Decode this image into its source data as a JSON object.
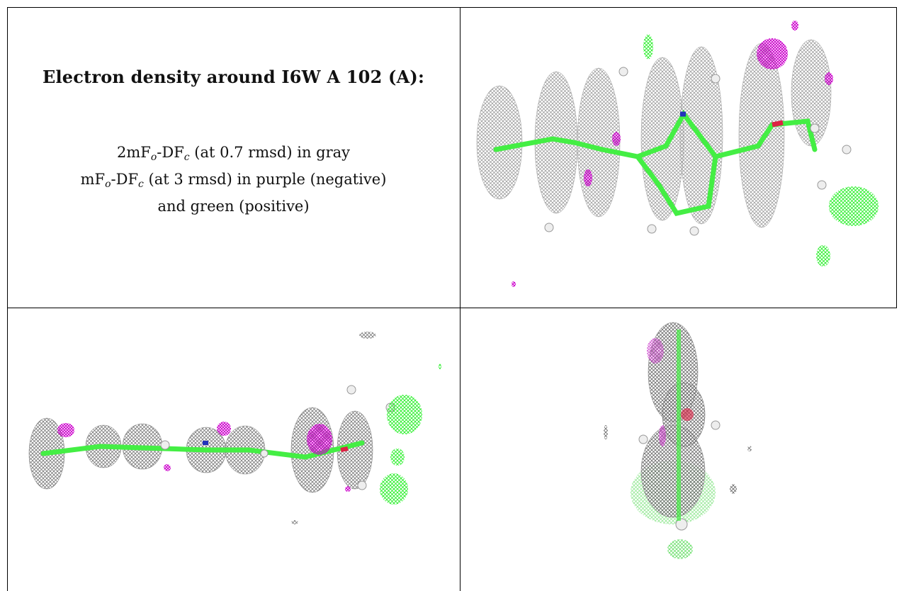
{
  "heading": "Electron density around I6W A 102 (A):",
  "legend": {
    "line1_prefix": "2mF",
    "line1_sub1": "o",
    "line1_mid": "-DF",
    "line1_sub2": "c",
    "line1_suffix": " (at 0.7 rmsd) in gray",
    "line2_prefix": "mF",
    "line2_sub1": "o",
    "line2_mid": "-DF",
    "line2_sub2": "c",
    "line2_suffix": " (at 3 rmsd) in purple (negative)",
    "line3": "and green (positive)"
  },
  "colors": {
    "mesh_gray": "#9a9a9a",
    "negative_purple": "#cc00cc",
    "positive_green": "#22ee22",
    "bond_green": "#44ee44",
    "nitrogen_blue": "#2233bb",
    "oxygen_red": "#dd2244",
    "hydrogen_white": "#eeeeee"
  },
  "panels": [
    {
      "name": "view-top-right"
    },
    {
      "name": "view-bottom-left"
    },
    {
      "name": "view-bottom-right"
    }
  ]
}
